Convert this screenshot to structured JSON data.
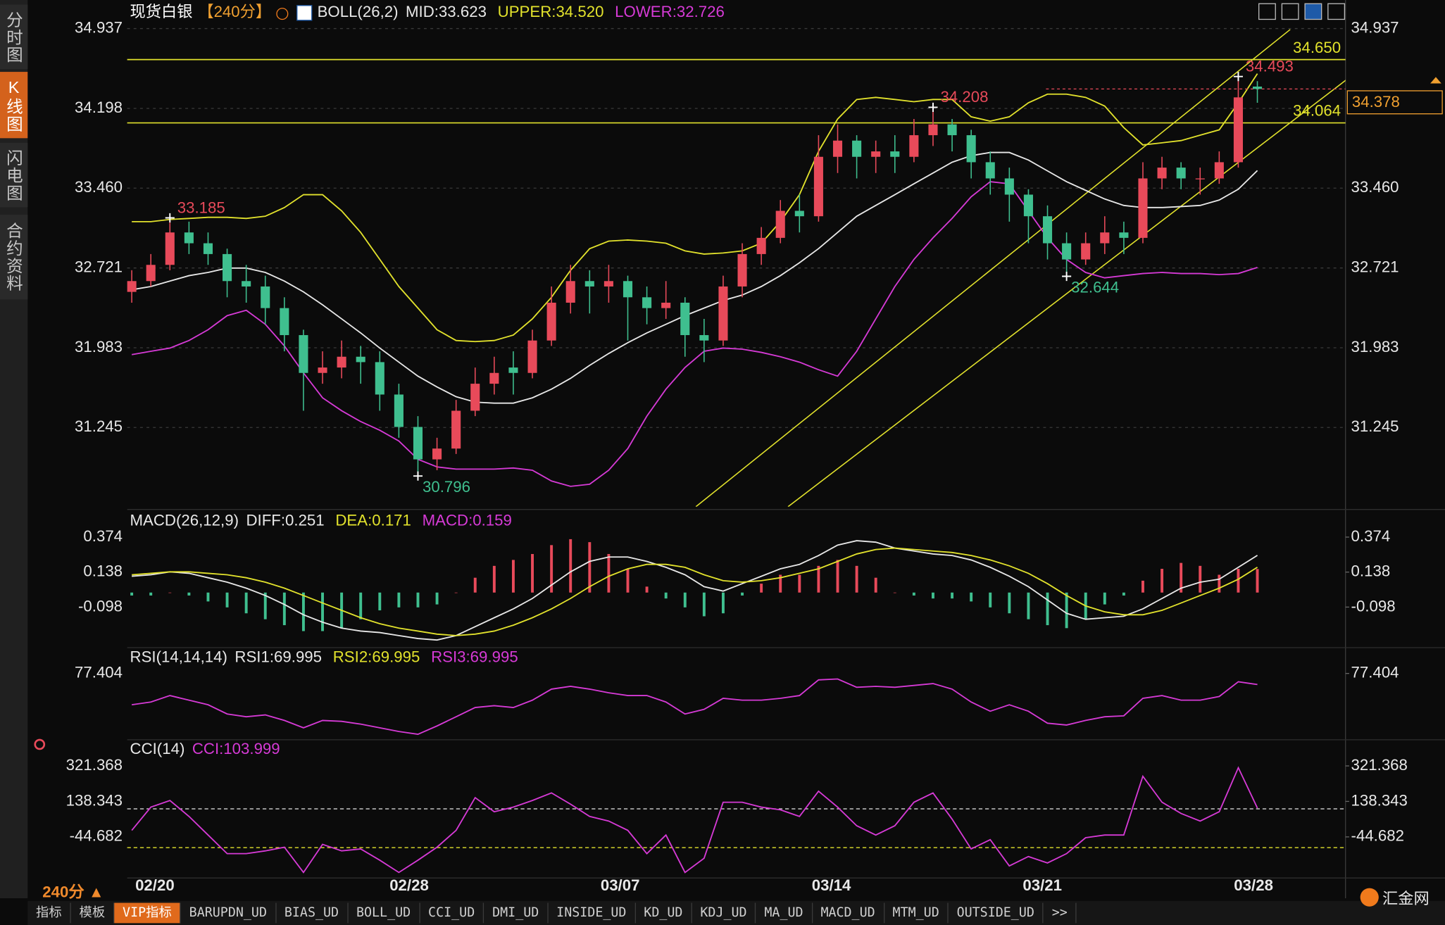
{
  "sidebar": [
    "分时图",
    "K线图",
    "闪电图",
    "合约资料"
  ],
  "period": "240分",
  "toolbar": [
    "指标",
    "模板",
    "VIP指标",
    "BARUPDN_UD",
    "BIAS_UD",
    "BOLL_UD",
    "CCI_UD",
    "DMI_UD",
    "INSIDE_UD",
    "KD_UD",
    "KDJ_UD",
    "MA_UD",
    "MACD_UD",
    "MTM_UD",
    "OUTSIDE_UD",
    ">>"
  ],
  "logo": "汇金网",
  "x_axis": {
    "xlim": [
      -0.24,
      63.62
    ],
    "xticks": [
      {
        "value": 1.21,
        "label": "02/20"
      },
      {
        "value": 14.54,
        "label": "02/28"
      },
      {
        "value": 25.6,
        "label": "03/07"
      },
      {
        "value": 36.67,
        "label": "03/14"
      },
      {
        "value": 47.73,
        "label": "03/21"
      },
      {
        "value": 58.8,
        "label": "03/28"
      }
    ]
  },
  "chart_data": [
    {
      "type": "candlestick",
      "title": "现货白银",
      "period_label": "【240分】",
      "indicator": "BOLL(26,2)",
      "ylim": [
        30.512,
        34.988
      ],
      "yticks": [
        34.937,
        34.198,
        {
          "value": 33.46,
          "label": "33.460"
        },
        32.721,
        31.983,
        31.245
      ],
      "grid": true,
      "up_color": "#e84a5a",
      "down_color": "#3fbf8f",
      "ohlc": [
        [
          32.5,
          32.7,
          32.4,
          32.6
        ],
        [
          32.6,
          32.85,
          32.55,
          32.75
        ],
        [
          32.75,
          33.185,
          32.7,
          33.05
        ],
        [
          33.05,
          33.15,
          32.85,
          32.95
        ],
        [
          32.95,
          33.05,
          32.75,
          32.85
        ],
        [
          32.85,
          32.9,
          32.45,
          32.6
        ],
        [
          32.6,
          32.75,
          32.4,
          32.55
        ],
        [
          32.55,
          32.65,
          32.2,
          32.35
        ],
        [
          32.35,
          32.45,
          31.95,
          32.1
        ],
        [
          32.1,
          32.15,
          31.4,
          31.75
        ],
        [
          31.75,
          31.95,
          31.65,
          31.8
        ],
        [
          31.8,
          32.05,
          31.7,
          31.9
        ],
        [
          31.9,
          32.0,
          31.65,
          31.85
        ],
        [
          31.85,
          31.95,
          31.4,
          31.55
        ],
        [
          31.55,
          31.65,
          31.15,
          31.25
        ],
        [
          31.25,
          31.35,
          30.796,
          30.95
        ],
        [
          30.95,
          31.15,
          30.85,
          31.05
        ],
        [
          31.05,
          31.5,
          31.0,
          31.4
        ],
        [
          31.4,
          31.8,
          31.35,
          31.65
        ],
        [
          31.65,
          31.9,
          31.55,
          31.75
        ],
        [
          31.8,
          31.95,
          31.55,
          31.75
        ],
        [
          31.75,
          32.15,
          31.7,
          32.05
        ],
        [
          32.05,
          32.55,
          32.0,
          32.4
        ],
        [
          32.4,
          32.75,
          32.3,
          32.6
        ],
        [
          32.6,
          32.7,
          32.3,
          32.55
        ],
        [
          32.55,
          32.75,
          32.4,
          32.6
        ],
        [
          32.6,
          32.65,
          32.05,
          32.45
        ],
        [
          32.45,
          32.55,
          32.2,
          32.35
        ],
        [
          32.35,
          32.6,
          32.25,
          32.4
        ],
        [
          32.4,
          32.45,
          31.9,
          32.1
        ],
        [
          32.1,
          32.25,
          31.85,
          32.05
        ],
        [
          32.05,
          32.65,
          32.0,
          32.55
        ],
        [
          32.55,
          32.95,
          32.45,
          32.85
        ],
        [
          32.85,
          33.1,
          32.75,
          33.0
        ],
        [
          33.0,
          33.35,
          32.95,
          33.25
        ],
        [
          33.25,
          33.4,
          33.05,
          33.2
        ],
        [
          33.2,
          33.95,
          33.15,
          33.75
        ],
        [
          33.75,
          34.05,
          33.6,
          33.9
        ],
        [
          33.9,
          33.95,
          33.55,
          33.75
        ],
        [
          33.75,
          33.9,
          33.6,
          33.8
        ],
        [
          33.8,
          33.95,
          33.6,
          33.75
        ],
        [
          33.75,
          34.1,
          33.7,
          33.95
        ],
        [
          33.95,
          34.208,
          33.85,
          34.05
        ],
        [
          34.05,
          34.1,
          33.8,
          33.95
        ],
        [
          33.95,
          34.0,
          33.55,
          33.7
        ],
        [
          33.7,
          33.8,
          33.4,
          33.55
        ],
        [
          33.55,
          33.65,
          33.15,
          33.4
        ],
        [
          33.4,
          33.45,
          32.95,
          33.2
        ],
        [
          33.2,
          33.3,
          32.8,
          32.95
        ],
        [
          32.95,
          33.05,
          32.644,
          32.8
        ],
        [
          32.8,
          33.05,
          32.75,
          32.95
        ],
        [
          32.95,
          33.2,
          32.85,
          33.05
        ],
        [
          33.05,
          33.15,
          32.85,
          33.0
        ],
        [
          33.0,
          33.7,
          32.95,
          33.55
        ],
        [
          33.55,
          33.75,
          33.45,
          33.65
        ],
        [
          33.65,
          33.7,
          33.45,
          33.55
        ],
        [
          33.55,
          33.65,
          33.4,
          33.55
        ],
        [
          33.55,
          33.8,
          33.5,
          33.7
        ],
        [
          33.7,
          34.493,
          33.65,
          34.3
        ],
        [
          34.4,
          34.45,
          34.25,
          34.378
        ]
      ],
      "series": [
        {
          "name": "MID:33.623",
          "color": "#e8e8e8",
          "values": [
            32.52,
            32.55,
            32.6,
            32.65,
            32.68,
            32.72,
            32.72,
            32.68,
            32.6,
            32.5,
            32.38,
            32.25,
            32.12,
            31.98,
            31.85,
            31.72,
            31.62,
            31.53,
            31.48,
            31.47,
            31.47,
            31.52,
            31.6,
            31.7,
            31.82,
            31.93,
            32.03,
            32.12,
            32.2,
            32.28,
            32.35,
            32.42,
            32.47,
            32.55,
            32.65,
            32.77,
            32.9,
            33.05,
            33.2,
            33.3,
            33.4,
            33.5,
            33.6,
            33.7,
            33.76,
            33.79,
            33.79,
            33.72,
            33.62,
            33.52,
            33.44,
            33.36,
            33.3,
            33.28,
            33.28,
            33.29,
            33.3,
            33.35,
            33.45,
            33.623
          ]
        },
        {
          "name": "UPPER:34.520",
          "color": "#e2e22c",
          "values": [
            33.15,
            33.15,
            33.17,
            33.18,
            33.19,
            33.19,
            33.18,
            33.2,
            33.28,
            33.4,
            33.4,
            33.25,
            33.05,
            32.8,
            32.55,
            32.35,
            32.15,
            32.05,
            32.04,
            32.05,
            32.1,
            32.25,
            32.45,
            32.7,
            32.9,
            32.97,
            32.98,
            32.97,
            32.95,
            32.88,
            32.85,
            32.86,
            32.88,
            32.95,
            33.15,
            33.4,
            33.8,
            34.1,
            34.28,
            34.3,
            34.28,
            34.26,
            34.28,
            34.28,
            34.12,
            34.08,
            34.12,
            34.25,
            34.33,
            34.33,
            34.3,
            34.22,
            34.02,
            33.86,
            33.88,
            33.9,
            33.95,
            34.0,
            34.25,
            34.52
          ]
        },
        {
          "name": "LOWER:32.726",
          "color": "#d63ad6",
          "values": [
            31.92,
            31.95,
            31.98,
            32.05,
            32.15,
            32.28,
            32.33,
            32.2,
            32.0,
            31.75,
            31.52,
            31.4,
            31.3,
            31.22,
            31.12,
            30.95,
            30.88,
            30.86,
            30.86,
            30.86,
            30.87,
            30.85,
            30.75,
            30.7,
            30.72,
            30.85,
            31.05,
            31.35,
            31.6,
            31.8,
            31.95,
            31.98,
            31.97,
            31.94,
            31.9,
            31.85,
            31.78,
            31.72,
            31.95,
            32.25,
            32.55,
            32.8,
            33.0,
            33.18,
            33.38,
            33.52,
            33.5,
            33.25,
            33.0,
            32.8,
            32.68,
            32.63,
            32.65,
            32.67,
            32.68,
            32.67,
            32.67,
            32.66,
            32.67,
            32.726
          ]
        }
      ],
      "levels": [
        {
          "value": 34.65,
          "label": "34.650",
          "color": "#e2e22c"
        },
        {
          "value": 34.064,
          "label": "34.064",
          "color": "#e2e22c"
        }
      ],
      "trendlines": [
        {
          "color": "#e2e22c",
          "points": [
            [
              29.57,
              30.512
            ],
            [
              60.72,
              34.928
            ]
          ]
        },
        {
          "color": "#e2e22c",
          "points": [
            [
              34.4,
              30.512
            ],
            [
              64.4,
              34.562
            ]
          ]
        }
      ],
      "annotations": [
        {
          "x": 58,
          "value": 34.493,
          "label": "34.493",
          "color": "#e84a5a",
          "side": "high"
        },
        {
          "x": 42,
          "value": 34.208,
          "label": "34.208",
          "color": "#e84a5a",
          "side": "high"
        },
        {
          "x": 2,
          "value": 33.185,
          "label": "33.185",
          "color": "#e84a5a",
          "side": "high"
        },
        {
          "x": 49,
          "value": 32.644,
          "label": "32.644",
          "color": "#3fbf8f",
          "side": "low"
        },
        {
          "x": 15,
          "value": 30.796,
          "label": "30.796",
          "color": "#3fbf8f",
          "side": "low"
        }
      ],
      "last_price": {
        "value": 34.378,
        "label": "34.378",
        "color": "#f0a030"
      }
    },
    {
      "type": "line",
      "indicator": "MACD(26,12,9)",
      "ylim": [
        -0.353,
        0.548
      ],
      "yticks": [
        0.374,
        0.138,
        -0.098
      ],
      "grid": false,
      "series": [
        {
          "name": "DIFF:0.251",
          "color": "#e8e8e8",
          "kind": "line",
          "values": [
            0.11,
            0.12,
            0.14,
            0.13,
            0.1,
            0.07,
            0.03,
            -0.02,
            -0.08,
            -0.15,
            -0.2,
            -0.24,
            -0.26,
            -0.27,
            -0.29,
            -0.31,
            -0.32,
            -0.29,
            -0.23,
            -0.17,
            -0.11,
            -0.04,
            0.05,
            0.14,
            0.21,
            0.24,
            0.24,
            0.21,
            0.17,
            0.12,
            0.04,
            0.01,
            0.06,
            0.11,
            0.16,
            0.19,
            0.25,
            0.32,
            0.35,
            0.34,
            0.3,
            0.28,
            0.26,
            0.25,
            0.22,
            0.17,
            0.11,
            0.04,
            -0.05,
            -0.14,
            -0.18,
            -0.17,
            -0.16,
            -0.11,
            -0.04,
            0.03,
            0.07,
            0.09,
            0.17,
            0.251
          ]
        },
        {
          "name": "DEA:0.171",
          "color": "#e2e22c",
          "kind": "line",
          "values": [
            0.12,
            0.13,
            0.14,
            0.14,
            0.13,
            0.12,
            0.1,
            0.07,
            0.03,
            -0.02,
            -0.07,
            -0.12,
            -0.17,
            -0.21,
            -0.24,
            -0.26,
            -0.28,
            -0.29,
            -0.28,
            -0.26,
            -0.22,
            -0.17,
            -0.11,
            -0.04,
            0.04,
            0.11,
            0.16,
            0.19,
            0.19,
            0.17,
            0.12,
            0.08,
            0.07,
            0.08,
            0.1,
            0.13,
            0.16,
            0.21,
            0.26,
            0.29,
            0.3,
            0.29,
            0.28,
            0.27,
            0.25,
            0.22,
            0.18,
            0.13,
            0.06,
            -0.02,
            -0.09,
            -0.13,
            -0.15,
            -0.15,
            -0.12,
            -0.07,
            -0.02,
            0.03,
            0.09,
            0.171
          ]
        },
        {
          "name": "MACD:0.159",
          "color": "#d63ad6",
          "kind": "histogram",
          "up_color": "#e84a5a",
          "down_color": "#3fbf8f",
          "values": [
            -0.02,
            -0.02,
            0,
            -0.02,
            -0.06,
            -0.1,
            -0.14,
            -0.18,
            -0.22,
            -0.26,
            -0.26,
            -0.24,
            -0.18,
            -0.12,
            -0.1,
            -0.1,
            -0.08,
            0,
            0.1,
            0.18,
            0.22,
            0.26,
            0.32,
            0.36,
            0.34,
            0.26,
            0.16,
            0.04,
            -0.04,
            -0.1,
            -0.16,
            -0.14,
            -0.02,
            0.06,
            0.12,
            0.12,
            0.18,
            0.22,
            0.18,
            0.1,
            0,
            -0.02,
            -0.04,
            -0.04,
            -0.06,
            -0.1,
            -0.14,
            -0.18,
            -0.22,
            -0.24,
            -0.18,
            -0.08,
            -0.02,
            0.08,
            0.16,
            0.2,
            0.18,
            0.12,
            0.16,
            0.159
          ]
        }
      ]
    },
    {
      "type": "line",
      "indicator": "RSI(14,14,14)",
      "ylim": [
        34.8,
        93.46
      ],
      "yticks": [
        77.404
      ],
      "grid": false,
      "legend": [
        {
          "name": "RSI1:69.995",
          "color": "#e8e8e8"
        },
        {
          "name": "RSI2:69.995",
          "color": "#e2e22c"
        },
        {
          "name": "RSI3:69.995",
          "color": "#d63ad6"
        }
      ],
      "series": [
        {
          "color": "#d63ad6",
          "kind": "line",
          "values": [
            56.41,
            58.26,
            62.59,
            59.5,
            56.41,
            50.24,
            48.39,
            49.62,
            45.92,
            40.98,
            45.92,
            45.3,
            43.45,
            40.98,
            38.51,
            36.66,
            42.21,
            48.39,
            54.56,
            55.79,
            54.56,
            59.5,
            66.91,
            68.76,
            66.91,
            64.44,
            62.59,
            62.59,
            58.26,
            50.24,
            53.33,
            60.73,
            59.5,
            59.5,
            60.73,
            62.59,
            73.08,
            73.7,
            68.14,
            68.76,
            68.14,
            69.38,
            70.61,
            66.91,
            58.26,
            52.09,
            56.41,
            52.09,
            44.06,
            42.83,
            45.92,
            48.39,
            49.0,
            60.73,
            62.59,
            59.5,
            59.5,
            61.97,
            71.85,
            69.995
          ]
        }
      ]
    },
    {
      "type": "line",
      "indicator": "CCI(14)",
      "ylim": [
        -242.2,
        446.6
      ],
      "yticks": [
        321.368,
        138.343,
        -44.682
      ],
      "grid": false,
      "levels": [
        {
          "value": 100,
          "color": "#e8e8e8"
        },
        {
          "value": -100,
          "color": "#e2e22c"
        }
      ],
      "series": [
        {
          "name": "CCI:103.999",
          "color": "#d63ad6",
          "kind": "line",
          "values": [
            -11,
            109,
            143,
            61,
            -35,
            -131,
            -131,
            -117,
            -98,
            -228,
            -83,
            -117,
            -107,
            -165,
            -228,
            -165,
            -98,
            -11,
            158,
            85,
            109,
            143,
            182,
            124,
            61,
            37,
            -11,
            -131,
            -35,
            -228,
            -155,
            134,
            134,
            109,
            95,
            61,
            191,
            109,
            13,
            -35,
            13,
            134,
            182,
            47,
            -107,
            -59,
            -194,
            -146,
            -179,
            -131,
            -49,
            -35,
            -35,
            268,
            134,
            76,
            37,
            85,
            312,
            103.999
          ]
        }
      ]
    }
  ]
}
